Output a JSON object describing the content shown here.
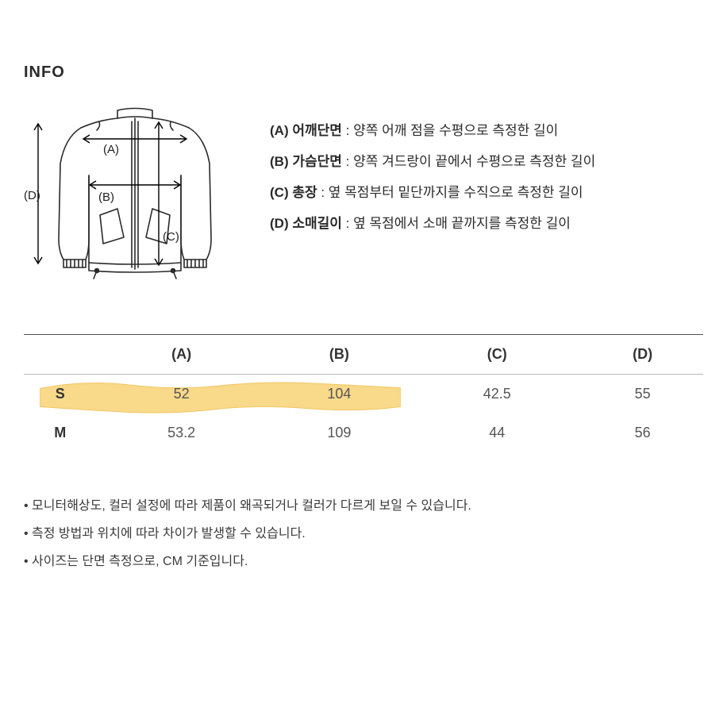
{
  "title": "INFO",
  "diagram": {
    "labels": {
      "A": "(A)",
      "B": "(B)",
      "C": "(C)",
      "D": "(D)"
    },
    "stroke": "#2a2a2a",
    "stroke_width": 1.6,
    "arrow_stroke": "#000000"
  },
  "legend": [
    {
      "key": "(A)",
      "label": "어깨단면",
      "desc": "양쪽 어깨 점을 수평으로 측정한 길이"
    },
    {
      "key": "(B)",
      "label": "가슴단면",
      "desc": "양쪽 겨드랑이 끝에서 수평으로 측정한 길이"
    },
    {
      "key": "(C)",
      "label": "총장",
      "desc": "옆 목점부터 밑단까지를 수직으로 측정한 길이"
    },
    {
      "key": "(D)",
      "label": "소매길이",
      "desc": "옆 목점에서 소매 끝까지를 측정한 길이"
    }
  ],
  "table": {
    "columns": [
      "",
      "(A)",
      "(B)",
      "(C)",
      "(D)"
    ],
    "rows": [
      {
        "size": "S",
        "values": [
          "52",
          "104",
          "42.5",
          "55"
        ],
        "highlight": true
      },
      {
        "size": "M",
        "values": [
          "53.2",
          "109",
          "44",
          "56"
        ],
        "highlight": false
      }
    ],
    "highlight_color": "#f9d98a",
    "highlight_edge": "#f0c35a"
  },
  "notes": [
    "모니터해상도, 컬러 설정에 따라 제품이 왜곡되거나 컬러가 다르게 보일 수 있습니다.",
    "측정 방법과 위치에 따라 차이가 발생할 수 있습니다.",
    "사이즈는 단면 측정으로, CM 기준입니다."
  ],
  "colors": {
    "background": "#ffffff",
    "text": "#333333",
    "rule_dark": "#555555",
    "rule_light": "#bbbbbb"
  },
  "fontsize": {
    "title": 20,
    "legend": 17,
    "table": 18,
    "notes": 16
  }
}
